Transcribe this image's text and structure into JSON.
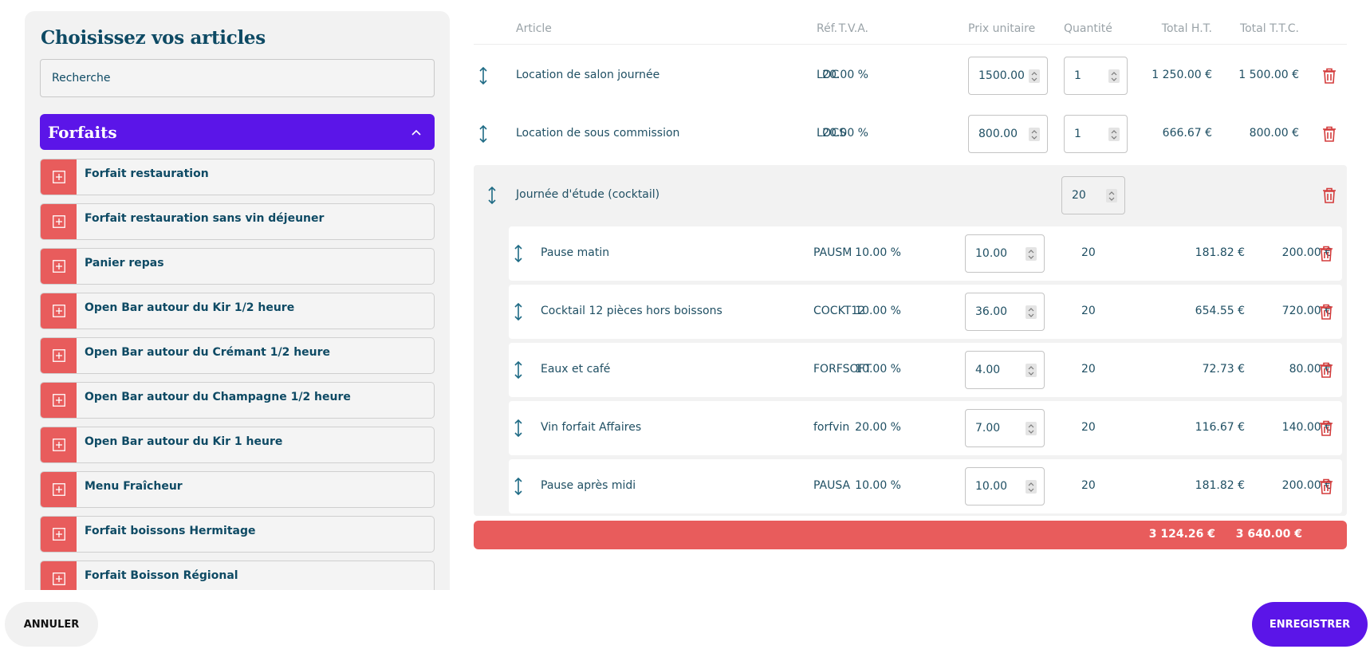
{
  "catalog": {
    "title": "Choisissez vos articles",
    "search_placeholder": "Recherche",
    "category": {
      "title": "Forfaits",
      "expanded": true
    },
    "items": [
      {
        "label": "Forfait restauration"
      },
      {
        "label": "Forfait restauration sans vin déjeuner"
      },
      {
        "label": "Panier repas"
      },
      {
        "label": "Open Bar autour du Kir 1/2 heure"
      },
      {
        "label": "Open Bar autour du Crémant 1/2 heure"
      },
      {
        "label": "Open Bar autour du Champagne 1/2 heure"
      },
      {
        "label": "Open Bar autour du Kir 1 heure"
      },
      {
        "label": "Menu Fraîcheur"
      },
      {
        "label": "Forfait boissons Hermitage"
      },
      {
        "label": "Forfait Boisson Régional"
      }
    ]
  },
  "table": {
    "headers": {
      "article": "Article",
      "ref": "Réf.",
      "tva": "T.V.A.",
      "unit_price": "Prix unitaire",
      "quantity": "Quantité",
      "total_ht": "Total H.T.",
      "total_ttc": "Total T.T.C."
    },
    "rows": [
      {
        "article": "Location de salon journée",
        "ref": "LOC",
        "tva": "20.00 %",
        "unit_price": "1500.00",
        "quantity": "1",
        "total_ht": "1 250.00 €",
        "total_ttc": "1 500.00 €"
      },
      {
        "article": "Location de sous commission",
        "ref": "LOCS",
        "tva": "20.00 %",
        "unit_price": "800.00",
        "quantity": "1",
        "total_ht": "666.67 €",
        "total_ttc": "800.00 €"
      }
    ],
    "group": {
      "title": "Journée d'étude (cocktail)",
      "quantity": "20",
      "rows": [
        {
          "article": "Pause matin",
          "ref": "PAUSM",
          "tva": "10.00 %",
          "unit_price": "10.00",
          "quantity": "20",
          "total_ht": "181.82 €",
          "total_ttc": "200.00 €"
        },
        {
          "article": "Cocktail 12 pièces hors boissons",
          "ref": "COCKT12",
          "tva": "10.00 %",
          "unit_price": "36.00",
          "quantity": "20",
          "total_ht": "654.55 €",
          "total_ttc": "720.00 €"
        },
        {
          "article": "Eaux et café",
          "ref": "FORFSOFT",
          "tva": "10.00 %",
          "unit_price": "4.00",
          "quantity": "20",
          "total_ht": "72.73 €",
          "total_ttc": "80.00 €"
        },
        {
          "article": "Vin forfait Affaires",
          "ref": "forfvin",
          "tva": "20.00 %",
          "unit_price": "7.00",
          "quantity": "20",
          "total_ht": "116.67 €",
          "total_ttc": "140.00 €"
        },
        {
          "article": "Pause après midi",
          "ref": "PAUSA",
          "tva": "10.00 %",
          "unit_price": "10.00",
          "quantity": "20",
          "total_ht": "181.82 €",
          "total_ttc": "200.00 €"
        }
      ]
    },
    "totals": {
      "total_ht": "3 124.26 €",
      "total_ttc": "3 640.00 €"
    }
  },
  "footer": {
    "cancel_label": "ANNULER",
    "save_label": "ENREGISTRER"
  },
  "colors": {
    "primary": "#5b15e8",
    "accent": "#e85c5c",
    "text": "#1f4f63",
    "panel_bg": "#f2f2f2"
  }
}
